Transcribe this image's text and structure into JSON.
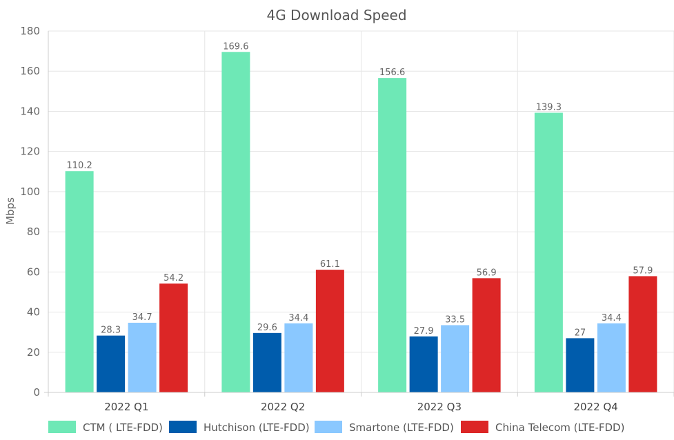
{
  "chart_data": {
    "type": "bar",
    "title": "4G Download Speed",
    "xlabel": "",
    "ylabel": "Mbps",
    "ylim": [
      0,
      180
    ],
    "yticks": [
      0,
      20,
      40,
      60,
      80,
      100,
      120,
      140,
      160,
      180
    ],
    "categories": [
      "2022 Q1",
      "2022 Q2",
      "2022 Q3",
      "2022 Q4"
    ],
    "grid": true,
    "legend": "bottom",
    "series": [
      {
        "name": "CTM ( LTE-FDD)",
        "color": "#6ee8b6",
        "values": [
          110.2,
          169.6,
          156.6,
          139.3
        ]
      },
      {
        "name": "Hutchison (LTE-FDD)",
        "color": "#005cac",
        "values": [
          28.3,
          29.6,
          27.9,
          27
        ]
      },
      {
        "name": "Smartone (LTE-FDD)",
        "color": "#8ac8ff",
        "values": [
          34.7,
          34.4,
          33.5,
          34.4
        ]
      },
      {
        "name": "China Telecom (LTE-FDD)",
        "color": "#dc2626",
        "values": [
          54.2,
          61.1,
          56.9,
          57.9
        ]
      }
    ]
  }
}
